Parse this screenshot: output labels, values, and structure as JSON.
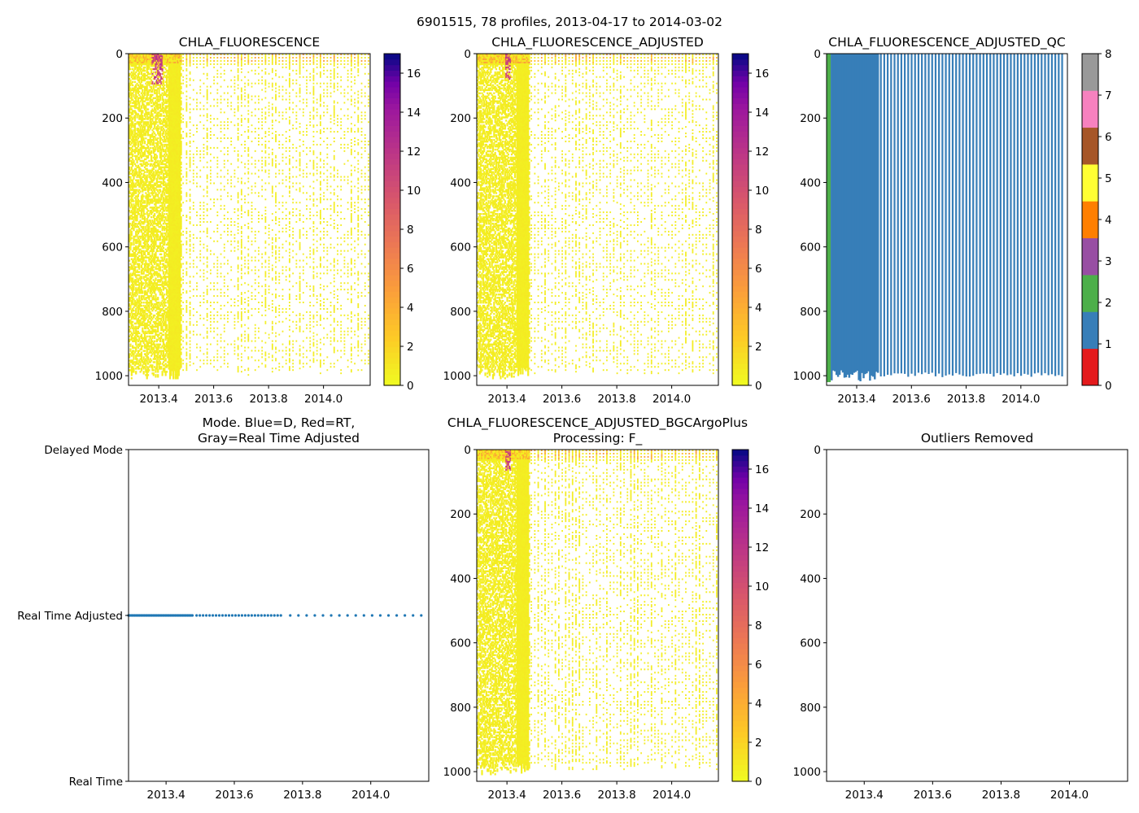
{
  "figure_title": "6901515, 78 profiles, 2013-04-17 to 2014-03-02",
  "chart_data": [
    {
      "id": "p1",
      "type": "heatmap",
      "title": [
        "CHLA_FLUORESCENCE"
      ],
      "xlabel": "",
      "ylabel": "",
      "xlim": [
        2013.29,
        2014.17
      ],
      "ylim": [
        1030,
        0
      ],
      "xticks": [
        2013.4,
        2013.6,
        2013.8,
        2014.0
      ],
      "xtick_labels": [
        "2013.4",
        "2013.6",
        "2013.8",
        "2014.0"
      ],
      "yticks": [
        0,
        200,
        400,
        600,
        800,
        1000
      ],
      "ytick_labels": [
        "0",
        "200",
        "400",
        "600",
        "800",
        "1000"
      ],
      "colormap": "plasma_r",
      "colorbar": {
        "min": 0,
        "max": 17,
        "ticks": [
          0,
          2,
          4,
          6,
          8,
          10,
          12,
          14,
          16
        ],
        "tick_labels": [
          "0",
          "2",
          "4",
          "6",
          "8",
          "10",
          "12",
          "14",
          "16"
        ]
      },
      "profiles": {
        "count": 78,
        "first": 2013.29,
        "last": 2014.17,
        "dense_until": 2013.48,
        "dense_step": 0.004,
        "sparse_step": 0.0125,
        "dense_max_depth": 1010,
        "sparse_max_depth": 1000
      },
      "high_values": {
        "x_from": 2013.37,
        "x_to": 2013.41,
        "depth_from": 0,
        "depth_to": 90,
        "value": 10.5
      },
      "surface_values": {
        "depth_to": 25,
        "value": 3.5
      },
      "background_value": 0.4
    },
    {
      "id": "p2",
      "type": "heatmap",
      "title": [
        "CHLA_FLUORESCENCE_ADJUSTED"
      ],
      "xlabel": "",
      "ylabel": "",
      "xlim": [
        2013.29,
        2014.17
      ],
      "ylim": [
        1030,
        0
      ],
      "xticks": [
        2013.4,
        2013.6,
        2013.8,
        2014.0
      ],
      "xtick_labels": [
        "2013.4",
        "2013.6",
        "2013.8",
        "2014.0"
      ],
      "yticks": [
        0,
        200,
        400,
        600,
        800,
        1000
      ],
      "ytick_labels": [
        "0",
        "200",
        "400",
        "600",
        "800",
        "1000"
      ],
      "colormap": "plasma_r",
      "colorbar": {
        "min": 0,
        "max": 17,
        "ticks": [
          0,
          2,
          4,
          6,
          8,
          10,
          12,
          14,
          16
        ],
        "tick_labels": [
          "0",
          "2",
          "4",
          "6",
          "8",
          "10",
          "12",
          "14",
          "16"
        ]
      },
      "profiles": {
        "count": 78,
        "first": 2013.29,
        "last": 2014.17,
        "dense_until": 2013.48,
        "dense_step": 0.004,
        "sparse_step": 0.0125,
        "dense_max_depth": 1010,
        "sparse_max_depth": 1000
      },
      "high_values": {
        "x_from": 2013.39,
        "x_to": 2013.41,
        "depth_from": 0,
        "depth_to": 75,
        "value": 10.5
      },
      "surface_values": {
        "depth_to": 25,
        "value": 3.5
      },
      "background_value": 0.4
    },
    {
      "id": "p3",
      "type": "heatmap",
      "title": [
        "CHLA_FLUORESCENCE_ADJUSTED_QC"
      ],
      "xlabel": "",
      "ylabel": "",
      "xlim": [
        2013.29,
        2014.17
      ],
      "ylim": [
        1030,
        0
      ],
      "xticks": [
        2013.4,
        2013.6,
        2013.8,
        2014.0
      ],
      "xtick_labels": [
        "2013.4",
        "2013.6",
        "2013.8",
        "2014.0"
      ],
      "yticks": [
        0,
        200,
        400,
        600,
        800,
        1000
      ],
      "ytick_labels": [
        "0",
        "200",
        "400",
        "600",
        "800",
        "1000"
      ],
      "colorbar_categorical": {
        "min": 0,
        "max": 8,
        "ticks": [
          0,
          1,
          2,
          3,
          4,
          5,
          6,
          7,
          8
        ],
        "tick_labels": [
          "0",
          "1",
          "2",
          "3",
          "4",
          "5",
          "6",
          "7",
          "8"
        ],
        "colors": [
          "#e41a1c",
          "#377eb8",
          "#4daf4a",
          "#984ea3",
          "#ff7f00",
          "#ffff33",
          "#a65628",
          "#f781bf",
          "#999999"
        ]
      },
      "qc_segments": [
        {
          "x_from": 2013.29,
          "x_to": 2013.305,
          "flag": 2,
          "depth_to": 1020
        },
        {
          "x_from": 2013.305,
          "x_to": 2013.48,
          "flag": 1,
          "depth_to": 1000
        }
      ],
      "qc_bars": {
        "flag": 1,
        "x_from": 2013.485,
        "x_to": 2014.16,
        "step": 0.0125,
        "depth_to": 1005
      }
    },
    {
      "id": "p4",
      "type": "scatter",
      "title": [
        "Mode. Blue=D, Red=RT,",
        "Gray=Real Time Adjusted"
      ],
      "xlabel": "",
      "ylabel": "",
      "xlim": [
        2013.29,
        2014.17
      ],
      "ylim": [
        0,
        2
      ],
      "xticks": [
        2013.4,
        2013.6,
        2013.8,
        2014.0
      ],
      "xtick_labels": [
        "2013.4",
        "2013.6",
        "2013.8",
        "2014.0"
      ],
      "yticks": [
        0,
        1,
        2
      ],
      "ytick_labels": [
        "Real Time",
        "Real Time Adjusted",
        "Delayed Mode"
      ],
      "series": [
        {
          "name": "Real Time Adjusted",
          "color": "#1f77b4",
          "y": 1,
          "x_dense_from": 2013.29,
          "x_dense_to": 2013.48,
          "dense_step": 0.0036,
          "x_sparse_to": 2013.74,
          "sparse_step": 0.0095,
          "x_late_to": 2014.17,
          "late_step": 0.024
        }
      ]
    },
    {
      "id": "p5",
      "type": "heatmap",
      "title": [
        "CHLA_FLUORESCENCE_ADJUSTED_BGCArgoPlus",
        "Processing: F_"
      ],
      "xlabel": "",
      "ylabel": "",
      "xlim": [
        2013.29,
        2014.17
      ],
      "ylim": [
        1030,
        0
      ],
      "xticks": [
        2013.4,
        2013.6,
        2013.8,
        2014.0
      ],
      "xtick_labels": [
        "2013.4",
        "2013.6",
        "2013.8",
        "2014.0"
      ],
      "yticks": [
        0,
        200,
        400,
        600,
        800,
        1000
      ],
      "ytick_labels": [
        "0",
        "200",
        "400",
        "600",
        "800",
        "1000"
      ],
      "colormap": "plasma_r",
      "colorbar": {
        "min": 0,
        "max": 17,
        "ticks": [
          0,
          2,
          4,
          6,
          8,
          10,
          12,
          14,
          16
        ],
        "tick_labels": [
          "0",
          "2",
          "4",
          "6",
          "8",
          "10",
          "12",
          "14",
          "16"
        ]
      },
      "profiles": {
        "count": 78,
        "first": 2013.29,
        "last": 2014.17,
        "dense_until": 2013.48,
        "dense_step": 0.004,
        "sparse_step": 0.0125,
        "dense_max_depth": 1010,
        "sparse_max_depth": 1000
      },
      "high_values": {
        "x_from": 2013.39,
        "x_to": 2013.41,
        "depth_from": 0,
        "depth_to": 60,
        "value": 10.5
      },
      "surface_values": {
        "depth_to": 25,
        "value": 3.5
      },
      "background_value": 0.4
    },
    {
      "id": "p6",
      "type": "scatter",
      "title": [
        "Outliers Removed"
      ],
      "xlabel": "",
      "ylabel": "",
      "xlim": [
        2013.29,
        2014.17
      ],
      "ylim": [
        1030,
        0
      ],
      "xticks": [
        2013.4,
        2013.6,
        2013.8,
        2014.0
      ],
      "xtick_labels": [
        "2013.4",
        "2013.6",
        "2013.8",
        "2014.0"
      ],
      "yticks": [
        0,
        200,
        400,
        600,
        800,
        1000
      ],
      "ytick_labels": [
        "0",
        "200",
        "400",
        "600",
        "800",
        "1000"
      ],
      "series": []
    }
  ]
}
